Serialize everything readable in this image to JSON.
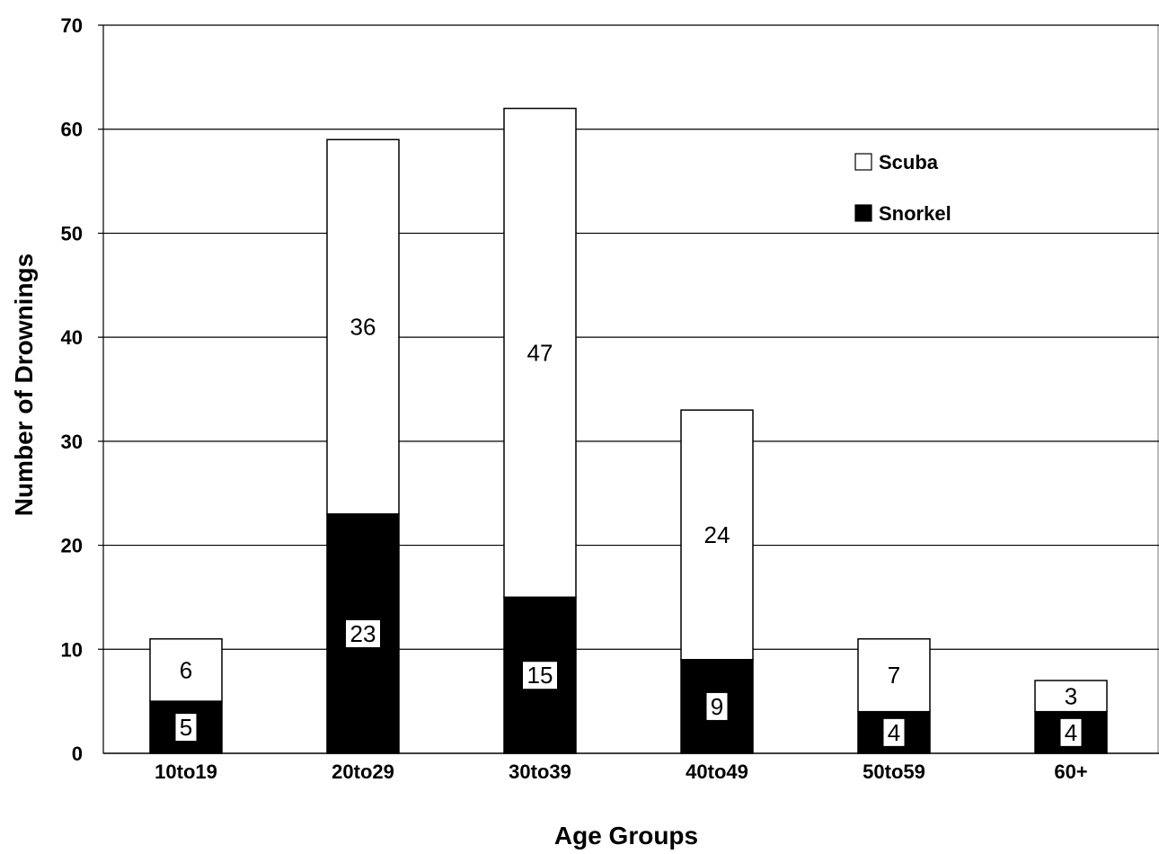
{
  "chart_data": {
    "type": "bar",
    "stacked": true,
    "categories": [
      "10to19",
      "20to29",
      "30to39",
      "40to49",
      "50to59",
      "60+"
    ],
    "series": [
      {
        "name": "Snorkel",
        "values": [
          5,
          23,
          15,
          9,
          4,
          4
        ],
        "color": "#000000"
      },
      {
        "name": "Scuba",
        "values": [
          6,
          36,
          47,
          24,
          7,
          3
        ],
        "color": "#ffffff"
      }
    ],
    "data_labels": {
      "Snorkel": [
        "5",
        "23",
        "15",
        "9",
        "4",
        "4"
      ],
      "Scuba": [
        "6",
        "36",
        "47",
        "24",
        "7",
        "3"
      ]
    },
    "title": "",
    "xlabel": "Age Groups",
    "ylabel": "Number of Drownings",
    "ylim": [
      0,
      70
    ],
    "yticks": [
      "0",
      "10",
      "20",
      "30",
      "40",
      "50",
      "60",
      "70"
    ],
    "grid": true,
    "legend": {
      "position": "top-right",
      "entries": [
        {
          "label": "Scuba",
          "color": "#ffffff"
        },
        {
          "label": "Snorkel",
          "color": "#000000"
        }
      ]
    }
  }
}
